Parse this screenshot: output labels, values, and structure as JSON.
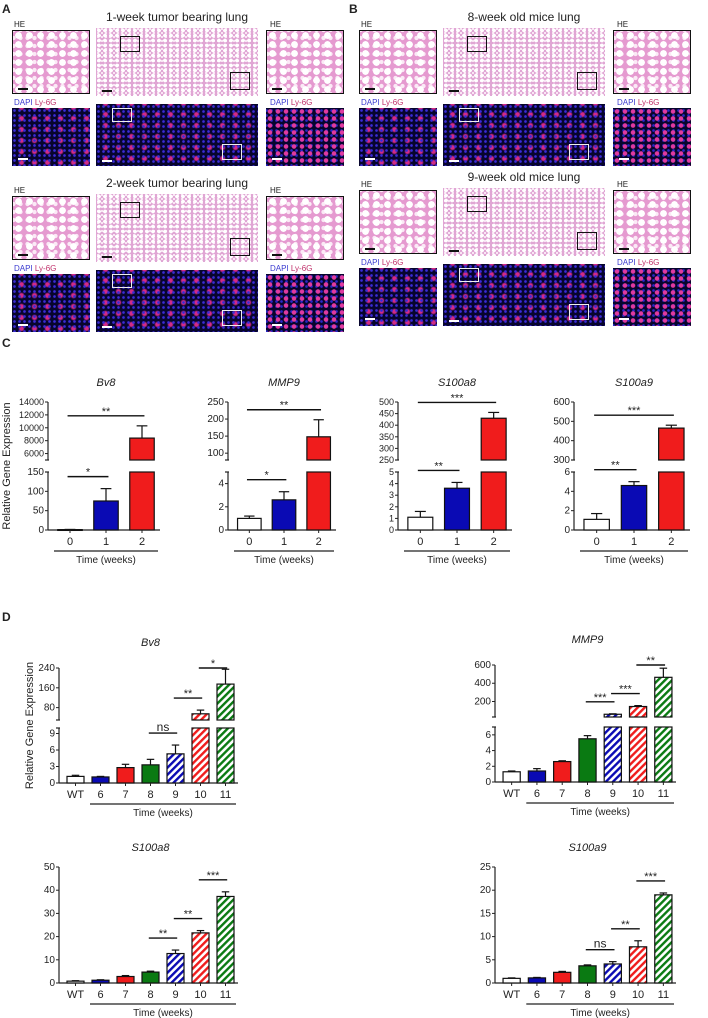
{
  "panel_labels": {
    "A": "A",
    "B": "B",
    "C": "C",
    "D": "D"
  },
  "histology": {
    "he_label": "HE",
    "dapi_label": "DAPI",
    "ly6g_label": "Ly-6G",
    "groups": [
      {
        "panel": "A",
        "title": "1-week tumor bearing lung"
      },
      {
        "panel": "A",
        "title": "2-week tumor bearing lung"
      },
      {
        "panel": "B",
        "title": "8-week old mice lung"
      },
      {
        "panel": "B",
        "title": "9-week old mice lung"
      }
    ]
  },
  "colors": {
    "white": "#ffffff",
    "blue": "#0a0ab4",
    "red": "#f01c1c",
    "green": "#0a7a12",
    "stroke": "#111111"
  },
  "chart_data": [
    {
      "id": "C-Bv8",
      "panel": "C",
      "type": "bar",
      "title": "Bv8",
      "ylabel": "Relative Gene Expression",
      "xlabel": "Time (weeks)",
      "categories": [
        "0",
        "1",
        "2"
      ],
      "values": [
        1,
        75,
        8400
      ],
      "errors": [
        0.5,
        32,
        1900
      ],
      "fills": [
        "white",
        "blue",
        "red"
      ],
      "segments": [
        {
          "range": [
            0,
            150
          ],
          "ticks": [
            0,
            50,
            100,
            150
          ]
        },
        {
          "range": [
            5000,
            14000
          ],
          "ticks": [
            6000,
            8000,
            10000,
            12000,
            14000
          ]
        }
      ],
      "significance": [
        {
          "from": 0,
          "to": 1,
          "label": "*"
        },
        {
          "from": 0,
          "to": 2,
          "label": "**"
        }
      ]
    },
    {
      "id": "C-MMP9",
      "panel": "C",
      "type": "bar",
      "title": "MMP9",
      "ylabel": "",
      "xlabel": "Time (weeks)",
      "categories": [
        "0",
        "1",
        "2"
      ],
      "values": [
        1.0,
        2.6,
        148
      ],
      "errors": [
        0.2,
        0.7,
        50
      ],
      "fills": [
        "white",
        "blue",
        "red"
      ],
      "segments": [
        {
          "range": [
            0,
            5
          ],
          "ticks": [
            0,
            2,
            4
          ]
        },
        {
          "range": [
            80,
            250
          ],
          "ticks": [
            100,
            150,
            200,
            250
          ]
        }
      ],
      "significance": [
        {
          "from": 0,
          "to": 1,
          "label": "*"
        },
        {
          "from": 0,
          "to": 2,
          "label": "**"
        }
      ]
    },
    {
      "id": "C-S100a8",
      "panel": "C",
      "type": "bar",
      "title": "S100a8",
      "ylabel": "",
      "xlabel": "Time (weeks)",
      "categories": [
        "0",
        "1",
        "2"
      ],
      "values": [
        1.1,
        3.6,
        430
      ],
      "errors": [
        0.5,
        0.5,
        25
      ],
      "fills": [
        "white",
        "blue",
        "red"
      ],
      "segments": [
        {
          "range": [
            0,
            5
          ],
          "ticks": [
            0,
            1,
            2,
            3,
            4,
            5
          ]
        },
        {
          "range": [
            250,
            500
          ],
          "ticks": [
            250,
            300,
            350,
            400,
            450,
            500
          ]
        }
      ],
      "significance": [
        {
          "from": 0,
          "to": 1,
          "label": "**"
        },
        {
          "from": 0,
          "to": 2,
          "label": "***"
        }
      ]
    },
    {
      "id": "C-S100a9",
      "panel": "C",
      "type": "bar",
      "title": "S100a9",
      "ylabel": "",
      "xlabel": "Time (weeks)",
      "categories": [
        "0",
        "1",
        "2"
      ],
      "values": [
        1.1,
        4.6,
        465
      ],
      "errors": [
        0.6,
        0.4,
        15
      ],
      "fills": [
        "white",
        "blue",
        "red"
      ],
      "segments": [
        {
          "range": [
            0,
            6
          ],
          "ticks": [
            0,
            2,
            4,
            6
          ]
        },
        {
          "range": [
            300,
            600
          ],
          "ticks": [
            300,
            400,
            500,
            600
          ]
        }
      ],
      "significance": [
        {
          "from": 0,
          "to": 1,
          "label": "**"
        },
        {
          "from": 0,
          "to": 2,
          "label": "***"
        }
      ]
    },
    {
      "id": "D-Bv8",
      "panel": "D",
      "type": "bar",
      "title": "Bv8",
      "ylabel": "Relative Gene Expression",
      "xlabel": "Time (weeks)",
      "categories": [
        "WT",
        "6",
        "7",
        "8",
        "9",
        "10",
        "11"
      ],
      "values": [
        1.2,
        1.1,
        2.8,
        3.3,
        5.3,
        55,
        175
      ],
      "errors": [
        0.2,
        0.1,
        0.6,
        1.0,
        1.6,
        15,
        60
      ],
      "fills": [
        "white",
        "blue",
        "red",
        "green",
        "blue-hatch",
        "red-hatch",
        "green-hatch"
      ],
      "segments": [
        {
          "range": [
            0,
            10
          ],
          "ticks": [
            0,
            3,
            6,
            9
          ]
        },
        {
          "range": [
            30,
            240
          ],
          "ticks": [
            80,
            160,
            240
          ]
        }
      ],
      "significance": [
        {
          "from": 3,
          "to": 4,
          "label": "ns"
        },
        {
          "from": 4,
          "to": 5,
          "label": "**"
        },
        {
          "from": 5,
          "to": 6,
          "label": "*"
        }
      ]
    },
    {
      "id": "D-MMP9",
      "panel": "D",
      "type": "bar",
      "title": "MMP9",
      "ylabel": "",
      "xlabel": "Time (weeks)",
      "categories": [
        "WT",
        "6",
        "7",
        "8",
        "9",
        "10",
        "11"
      ],
      "values": [
        1.3,
        1.4,
        2.6,
        5.5,
        60,
        145,
        465
      ],
      "errors": [
        0.1,
        0.3,
        0.1,
        0.4,
        5,
        10,
        100
      ],
      "fills": [
        "white",
        "blue",
        "red",
        "green",
        "blue-hatch",
        "red-hatch",
        "green-hatch"
      ],
      "segments": [
        {
          "range": [
            0,
            7
          ],
          "ticks": [
            0,
            2,
            4,
            6
          ]
        },
        {
          "range": [
            30,
            600
          ],
          "ticks": [
            200,
            400,
            600
          ]
        }
      ],
      "significance": [
        {
          "from": 3,
          "to": 4,
          "label": "***"
        },
        {
          "from": 4,
          "to": 5,
          "label": "***"
        },
        {
          "from": 5,
          "to": 6,
          "label": "**"
        }
      ]
    },
    {
      "id": "D-S100a8",
      "panel": "D",
      "type": "bar",
      "title": "S100a8",
      "ylabel": "",
      "xlabel": "Time (weeks)",
      "categories": [
        "WT",
        "6",
        "7",
        "8",
        "9",
        "10",
        "11"
      ],
      "values": [
        0.8,
        1.2,
        2.8,
        4.7,
        12.7,
        21.6,
        37.3
      ],
      "errors": [
        0.2,
        0.2,
        0.4,
        0.4,
        1.5,
        1.0,
        2.0
      ],
      "fills": [
        "white",
        "blue",
        "red",
        "green",
        "blue-hatch",
        "red-hatch",
        "green-hatch"
      ],
      "segments": [
        {
          "range": [
            0,
            50
          ],
          "ticks": [
            0,
            10,
            20,
            30,
            40,
            50
          ]
        }
      ],
      "significance": [
        {
          "from": 3,
          "to": 4,
          "label": "**"
        },
        {
          "from": 4,
          "to": 5,
          "label": "**"
        },
        {
          "from": 5,
          "to": 6,
          "label": "***"
        }
      ]
    },
    {
      "id": "D-S100a9",
      "panel": "D",
      "type": "bar",
      "title": "S100a9",
      "ylabel": "",
      "xlabel": "Time (weeks)",
      "categories": [
        "WT",
        "6",
        "7",
        "8",
        "9",
        "10",
        "11"
      ],
      "values": [
        1.0,
        1.1,
        2.3,
        3.7,
        4.1,
        7.8,
        19.0
      ],
      "errors": [
        0.1,
        0.1,
        0.2,
        0.2,
        0.5,
        1.3,
        0.4
      ],
      "fills": [
        "white",
        "blue",
        "red",
        "green",
        "blue-hatch",
        "red-hatch",
        "green-hatch"
      ],
      "segments": [
        {
          "range": [
            0,
            25
          ],
          "ticks": [
            0,
            5,
            10,
            15,
            20,
            25
          ]
        }
      ],
      "significance": [
        {
          "from": 3,
          "to": 4,
          "label": "ns"
        },
        {
          "from": 4,
          "to": 5,
          "label": "**"
        },
        {
          "from": 5,
          "to": 6,
          "label": "***"
        }
      ]
    }
  ]
}
